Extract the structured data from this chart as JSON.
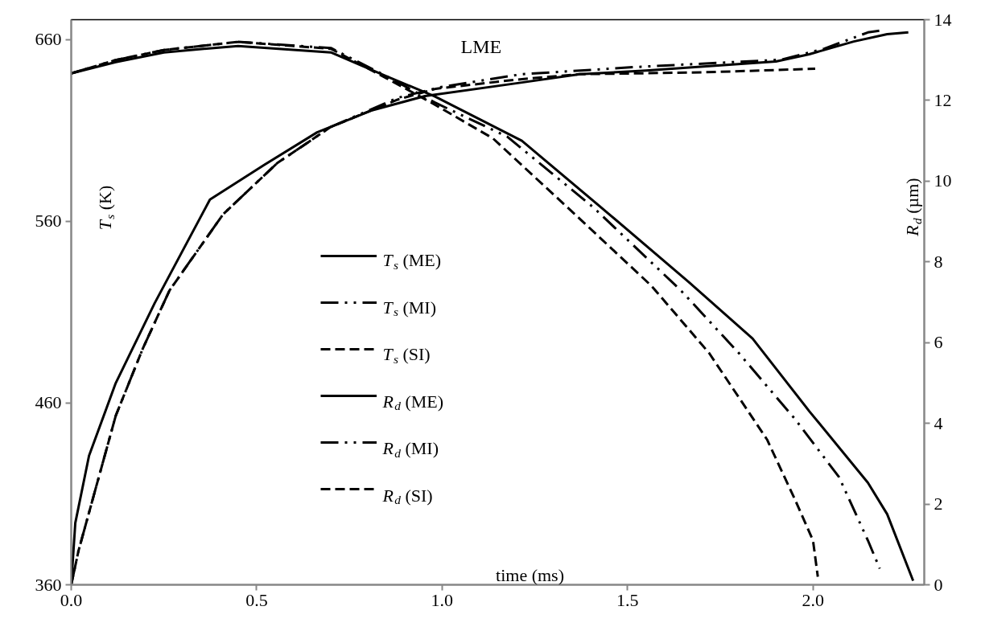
{
  "chart_data": {
    "type": "line",
    "xlabel": "time (ms)",
    "ylabel": "T$_{s}$ (K)",
    "y2label": "R$_{d}$ (µm)",
    "annotations": [
      "LME"
    ],
    "xlim": [
      0,
      2.3
    ],
    "xticks": [
      {
        "value": 0,
        "label": "0.0"
      },
      {
        "value": 0.5,
        "label": "0.5"
      },
      {
        "value": 1,
        "label": "1.0"
      },
      {
        "value": 1.5,
        "label": "1.5"
      },
      {
        "value": 2,
        "label": "2.0"
      }
    ],
    "ylim": [
      360,
      671
    ],
    "yticks": [
      360,
      460,
      560,
      660
    ],
    "y2lim": [
      0,
      14
    ],
    "y2ticks": [
      0,
      2,
      4,
      6,
      8,
      10,
      12,
      14
    ],
    "legend": "center",
    "series": [
      {
        "name": "T$_{s}$ (ME)",
        "color": "#000000",
        "line_style": "solid",
        "x": [
          0,
          0.011,
          0.048,
          0.12,
          0.225,
          0.374,
          0.52,
          0.663,
          0.809,
          0.954,
          1.2,
          1.372,
          1.55,
          1.759,
          1.9,
          1.99,
          2.11,
          2.2,
          2.257
        ],
        "values": [
          360,
          394,
          431,
          471,
          515,
          572,
          591,
          609,
          621,
          629,
          636,
          641,
          643,
          646,
          648,
          652,
          659,
          663,
          664
        ]
      },
      {
        "name": "T$_{s}$ (MI)",
        "color": "#000000",
        "line_style": "dashdot",
        "x": [
          0,
          0.02,
          0.07,
          0.12,
          0.193,
          0.265,
          0.41,
          0.555,
          0.7,
          0.88,
          0.998,
          1.215,
          1.526,
          1.915,
          2.03,
          2.148,
          2.18
        ],
        "values": [
          360,
          379,
          416,
          453,
          490,
          522,
          564,
          592,
          612,
          628,
          634,
          641,
          645,
          649,
          655,
          664,
          665
        ]
      },
      {
        "name": "T$_{s}$ (SI)",
        "color": "#000000",
        "line_style": "dashed",
        "x": [
          0,
          0.02,
          0.07,
          0.12,
          0.193,
          0.265,
          0.41,
          0.555,
          0.7,
          0.88,
          0.983,
          1.2,
          1.37,
          1.7,
          2.006
        ],
        "values": [
          360,
          379,
          416,
          453,
          490,
          522,
          564,
          592,
          612,
          627,
          633,
          638,
          641,
          642,
          644
        ]
      },
      {
        "name": "R$_{d}$ (ME)",
        "color": "#000000",
        "line_style": "solid",
        "axis": "y2",
        "x": [
          0,
          0.12,
          0.25,
          0.45,
          0.7,
          0.85,
          0.98,
          1.215,
          1.448,
          1.665,
          1.837,
          1.99,
          2.148,
          2.2,
          2.27
        ],
        "values": [
          12.67,
          12.95,
          13.19,
          13.35,
          13.19,
          12.6,
          12.1,
          11.0,
          9.2,
          7.5,
          6.1,
          4.3,
          2.53,
          1.75,
          0.1
        ]
      },
      {
        "name": "R$_{d}$ (MI)",
        "color": "#000000",
        "line_style": "dashdot",
        "axis": "y2",
        "x": [
          0,
          0.12,
          0.25,
          0.45,
          0.7,
          0.85,
          0.98,
          1.176,
          1.409,
          1.643,
          1.8,
          1.952,
          2.07,
          2.148,
          2.18
        ],
        "values": [
          12.67,
          13.0,
          13.25,
          13.45,
          13.3,
          12.6,
          11.95,
          11.1,
          9.34,
          7.3,
          5.74,
          4.1,
          2.67,
          1.1,
          0.4
        ]
      },
      {
        "name": "R$_{d}$ (SI)",
        "color": "#000000",
        "line_style": "dashed",
        "axis": "y2",
        "x": [
          0,
          0.12,
          0.25,
          0.45,
          0.7,
          0.85,
          0.97,
          1.137,
          1.372,
          1.565,
          1.72,
          1.876,
          1.952,
          2.0,
          2.013
        ],
        "values": [
          12.67,
          13.0,
          13.25,
          13.45,
          13.28,
          12.55,
          11.95,
          11.06,
          9.06,
          7.4,
          5.74,
          3.6,
          2.1,
          1.1,
          0.2
        ]
      }
    ]
  }
}
